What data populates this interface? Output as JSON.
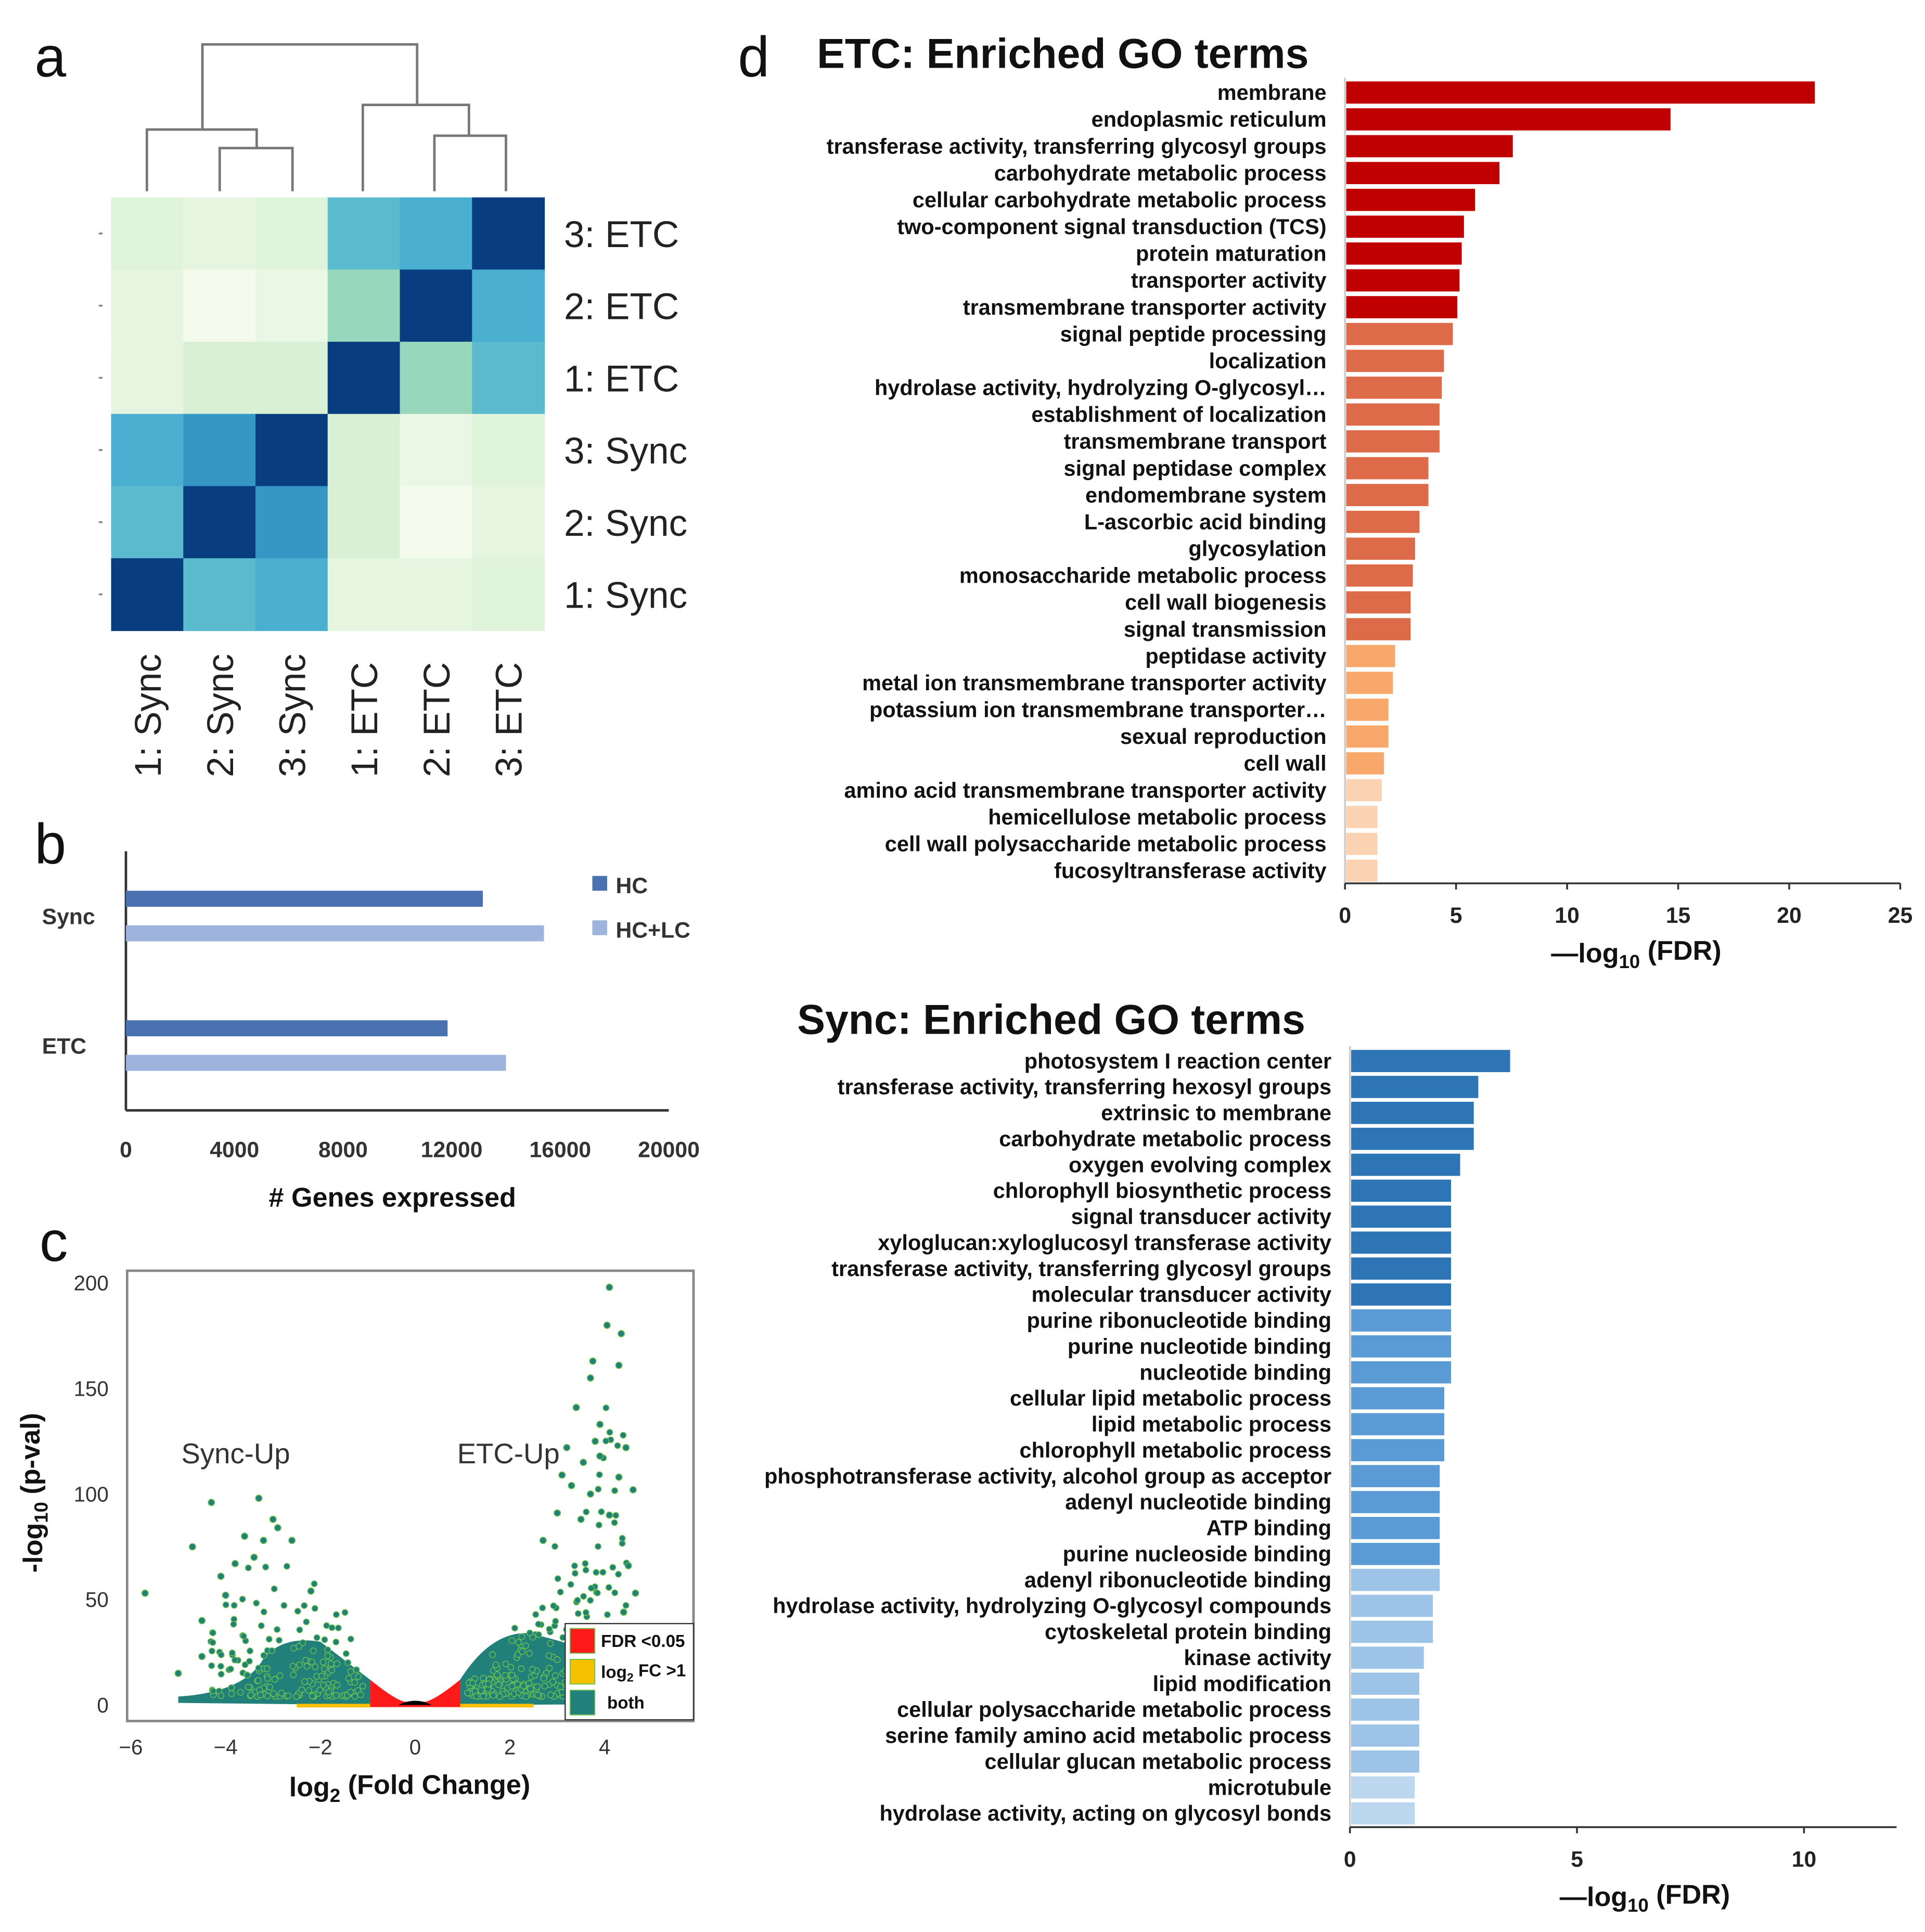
{
  "panel_labels": {
    "a": "a",
    "b": "b",
    "c": "c",
    "d": "d"
  },
  "chart_data": [
    {
      "id": "heatmap",
      "type": "heatmap",
      "title": "",
      "rows": [
        "3: ETC",
        "2: ETC",
        "1: ETC",
        "3: Sync",
        "2: Sync",
        "1: Sync"
      ],
      "columns": [
        "1: Sync",
        "2: Sync",
        "3: Sync",
        "1: ETC",
        "2: ETC",
        "3: ETC"
      ],
      "values": [
        [
          0.15,
          0.12,
          0.15,
          0.6,
          0.65,
          1.0
        ],
        [
          0.12,
          0.02,
          0.08,
          0.45,
          1.0,
          0.65
        ],
        [
          0.12,
          0.2,
          0.2,
          1.0,
          0.45,
          0.6
        ],
        [
          0.65,
          0.72,
          1.0,
          0.2,
          0.08,
          0.15
        ],
        [
          0.6,
          1.0,
          0.72,
          0.2,
          0.02,
          0.12
        ],
        [
          1.0,
          0.6,
          0.65,
          0.12,
          0.12,
          0.15
        ]
      ],
      "dendrogram": "columns clustered: (1: Sync, (2: Sync, 3: Sync)) and (1: ETC, (2: ETC, 3: ETC))",
      "colormap": [
        "#f7fcf0",
        "#e0f3db",
        "#ccebc5",
        "#97d7bb",
        "#5bbacd",
        "#4aafd1",
        "#3597c4",
        "#083e80"
      ]
    },
    {
      "id": "genes-expressed",
      "type": "bar",
      "orientation": "horizontal",
      "categories": [
        "Sync",
        "ETC"
      ],
      "series": [
        {
          "name": "HC",
          "values": [
            13150,
            11850
          ],
          "color": "#4a72b0"
        },
        {
          "name": "HC+LC",
          "values": [
            15400,
            14000
          ],
          "color": "#9fb4dc"
        }
      ],
      "xlabel": "# Genes expressed",
      "xlim": [
        0,
        20000
      ],
      "xticks": [
        "0",
        "4000",
        "8000",
        "12000",
        "16000",
        "20000"
      ],
      "legend": "right"
    },
    {
      "id": "volcano",
      "type": "scatter",
      "xlabel_main": "log",
      "xlabel_sub": "2",
      "xlabel_rest": " (Fold Change)",
      "ylabel_main": "-log",
      "ylabel_sub": "10",
      "ylabel_rest": " (p-val)",
      "xlim": [
        -6,
        6
      ],
      "ylim": [
        -5,
        205
      ],
      "xticks": [
        "−6",
        "−4",
        "−2",
        "0",
        "2",
        "4"
      ],
      "yticks": [
        "0",
        "50",
        "100",
        "150",
        "200"
      ],
      "annotations": [
        "Sync-Up",
        "ETC-Up"
      ],
      "legend": [
        {
          "label": "FDR <0.05",
          "color": "#ff1a1a"
        },
        {
          "label_main": "log",
          "label_sub": "2",
          "label_rest": " FC >1",
          "color": "#f5c000"
        },
        {
          "label": "both",
          "color": "#22807a"
        }
      ],
      "legend_placement": "bottom-right",
      "highlight_points": [
        [
          -5.7,
          53
        ],
        [
          -4.3,
          96
        ],
        [
          -4.7,
          75
        ],
        [
          -3.3,
          98
        ],
        [
          -3.0,
          88
        ],
        [
          -2.9,
          84
        ],
        [
          -3.6,
          80
        ],
        [
          -3.2,
          78
        ],
        [
          -2.6,
          78
        ],
        [
          -4.1,
          61
        ],
        [
          -3.4,
          70
        ],
        [
          -2.2,
          54
        ],
        [
          -4.5,
          40
        ],
        [
          -4.0,
          52
        ],
        [
          -4.5,
          23
        ],
        [
          -5.0,
          15
        ],
        [
          -3.8,
          67
        ],
        [
          4.1,
          198
        ],
        [
          4.05,
          180
        ],
        [
          4.35,
          176
        ],
        [
          3.75,
          163
        ],
        [
          4.3,
          161
        ],
        [
          3.7,
          155
        ],
        [
          3.4,
          141
        ],
        [
          4.45,
          122
        ],
        [
          3.9,
          133
        ],
        [
          3.2,
          122
        ],
        [
          3.9,
          118
        ],
        [
          4.3,
          108
        ],
        [
          4.6,
          102
        ],
        [
          3.0,
          91
        ],
        [
          4.5,
          66
        ],
        [
          4.65,
          53
        ],
        [
          4.4,
          44
        ],
        [
          3.8,
          125
        ],
        [
          3.55,
          115
        ],
        [
          3.1,
          109
        ],
        [
          3.3,
          104
        ],
        [
          3.7,
          100
        ],
        [
          2.7,
          78
        ],
        [
          3.5,
          88
        ],
        [
          4.1,
          90
        ]
      ]
    },
    {
      "id": "etc-go",
      "type": "bar",
      "orientation": "horizontal",
      "title": "ETC: Enriched GO terms",
      "xlabel_main": "—log",
      "xlabel_sub": "10",
      "xlabel_rest": " (FDR)",
      "xlim": [
        0,
        25
      ],
      "xticks": [
        "0",
        "5",
        "10",
        "15",
        "20",
        "25"
      ],
      "categories": [
        "membrane",
        "endoplasmic reticulum",
        "transferase activity, transferring glycosyl groups",
        "carbohydrate metabolic process",
        "cellular carbohydrate metabolic process",
        "two-component signal transduction  (TCS)",
        "protein maturation",
        "transporter activity",
        "transmembrane transporter activity",
        "signal peptide processing",
        "localization",
        "hydrolase activity, hydrolyzing O-glycosyl…",
        "establishment of localization",
        "transmembrane transport",
        "signal peptidase complex",
        "endomembrane system",
        "L-ascorbic acid binding",
        "glycosylation",
        "monosaccharide metabolic process",
        "cell wall biogenesis",
        "signal transmission",
        "peptidase activity",
        "metal ion transmembrane transporter activity",
        "potassium ion transmembrane transporter…",
        "sexual reproduction",
        "cell wall",
        "amino acid transmembrane transporter activity",
        "hemicellulose metabolic process",
        "cell wall polysaccharide metabolic process",
        "fucosyltransferase activity"
      ],
      "values": [
        21.1,
        14.6,
        7.5,
        6.9,
        5.8,
        5.3,
        5.2,
        5.1,
        5.0,
        4.8,
        4.4,
        4.3,
        4.2,
        4.2,
        3.7,
        3.7,
        3.3,
        3.1,
        3.0,
        2.9,
        2.9,
        2.2,
        2.1,
        1.9,
        1.9,
        1.7,
        1.6,
        1.4,
        1.4,
        1.4
      ],
      "color_groups": [
        9,
        12,
        5,
        4
      ],
      "colors": [
        "#c00000",
        "#dd6a48",
        "#f8a86a",
        "#fbd2b2"
      ]
    },
    {
      "id": "sync-go",
      "type": "bar",
      "orientation": "horizontal",
      "title": "Sync: Enriched GO terms",
      "xlabel_main": "—log",
      "xlabel_sub": "10",
      "xlabel_rest": " (FDR)",
      "xlim": [
        0,
        12
      ],
      "xticks": [
        "0",
        "5",
        "10"
      ],
      "categories": [
        "photosystem I reaction center",
        "transferase activity, transferring hexosyl groups",
        "extrinsic to membrane",
        "carbohydrate metabolic process",
        "oxygen evolving complex",
        "chlorophyll biosynthetic process",
        "signal transducer activity",
        "xyloglucan:xyloglucosyl transferase activity",
        "transferase activity, transferring glycosyl groups",
        "molecular transducer activity",
        "purine ribonucleotide binding",
        "purine nucleotide binding",
        "nucleotide binding",
        "cellular lipid metabolic process",
        "lipid metabolic process",
        "chlorophyll metabolic process",
        "phosphotransferase activity, alcohol group as acceptor",
        "adenyl nucleotide binding",
        "ATP binding",
        "purine nucleoside binding",
        "adenyl ribonucleotide binding",
        "hydrolase activity, hydrolyzing O-glycosyl compounds",
        "cytoskeletal protein binding",
        "kinase activity",
        "lipid modification",
        "cellular polysaccharide metabolic process",
        "serine family amino acid metabolic process",
        "cellular glucan metabolic process",
        "microtubule",
        "hydrolase activity, acting on glycosyl bonds"
      ],
      "values": [
        3.5,
        2.8,
        2.7,
        2.7,
        2.4,
        2.2,
        2.2,
        2.2,
        2.2,
        2.2,
        2.2,
        2.2,
        2.2,
        2.05,
        2.05,
        2.05,
        1.95,
        1.95,
        1.95,
        1.95,
        1.95,
        1.8,
        1.8,
        1.6,
        1.5,
        1.5,
        1.5,
        1.5,
        1.4,
        1.4
      ],
      "color_groups": [
        10,
        10,
        8,
        2
      ],
      "colors": [
        "#2e75b6",
        "#5b9bd5",
        "#9dc3e6",
        "#bdd7ee"
      ]
    }
  ]
}
